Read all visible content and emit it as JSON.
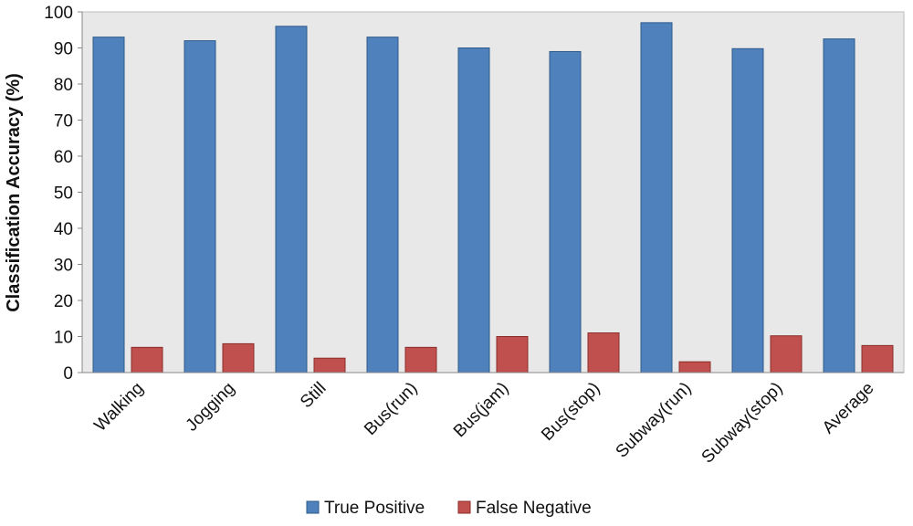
{
  "chart_data": {
    "type": "bar",
    "title": "",
    "xlabel": "",
    "ylabel": "Classification Accuracy (%)",
    "ylim": [
      0,
      100
    ],
    "yticks": [
      0,
      10,
      20,
      30,
      40,
      50,
      60,
      70,
      80,
      90,
      100
    ],
    "grid": false,
    "legend_position": "bottom",
    "categories": [
      "Walking",
      "Jogging",
      "Still",
      "Bus(run)",
      "Bus(jam)",
      "Bus(stop)",
      "Subway(run)",
      "Subway(stop)",
      "Average"
    ],
    "series": [
      {
        "name": "True Positive",
        "color": "#4F81BD",
        "values": [
          93,
          92,
          96,
          93,
          90,
          89,
          97,
          89.8,
          92.5
        ]
      },
      {
        "name": "False Negative",
        "color": "#C0504D",
        "values": [
          7,
          8,
          4,
          7,
          10,
          11,
          3,
          10.2,
          7.5
        ]
      }
    ],
    "plot_background": "#E8E8E8"
  }
}
